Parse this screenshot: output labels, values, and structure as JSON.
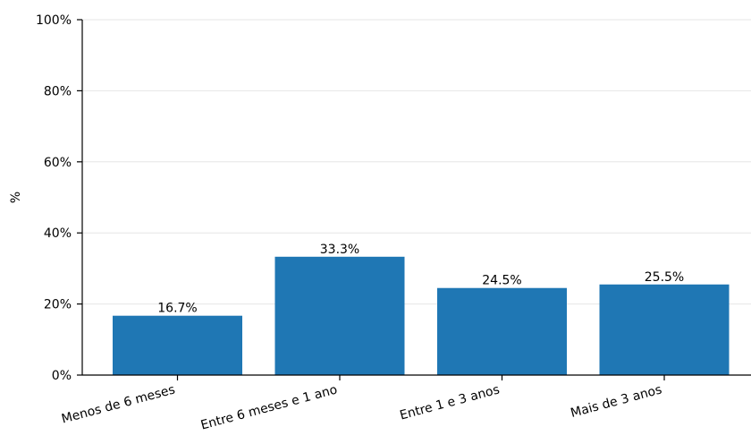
{
  "chart_data": {
    "type": "bar",
    "categories": [
      "Menos de 6 meses",
      "Entre 6 meses e 1 ano",
      "Entre 1 e 3 anos",
      "Mais de 3 anos"
    ],
    "values": [
      16.7,
      33.3,
      24.5,
      25.5
    ],
    "value_labels": [
      "16.7%",
      "33.3%",
      "24.5%",
      "25.5%"
    ],
    "title": "",
    "xlabel": "",
    "ylabel": "%",
    "ylim": [
      0,
      100
    ],
    "yticks": [
      0,
      20,
      40,
      60,
      80,
      100
    ],
    "ytick_labels": [
      "0%",
      "20%",
      "40%",
      "60%",
      "80%",
      "100%"
    ],
    "grid": "horizontal",
    "legend": "none",
    "colors": {
      "bar": "#1f77b4",
      "grid": "#e6e6e6",
      "axis": "#000000",
      "text": "#000000"
    }
  }
}
